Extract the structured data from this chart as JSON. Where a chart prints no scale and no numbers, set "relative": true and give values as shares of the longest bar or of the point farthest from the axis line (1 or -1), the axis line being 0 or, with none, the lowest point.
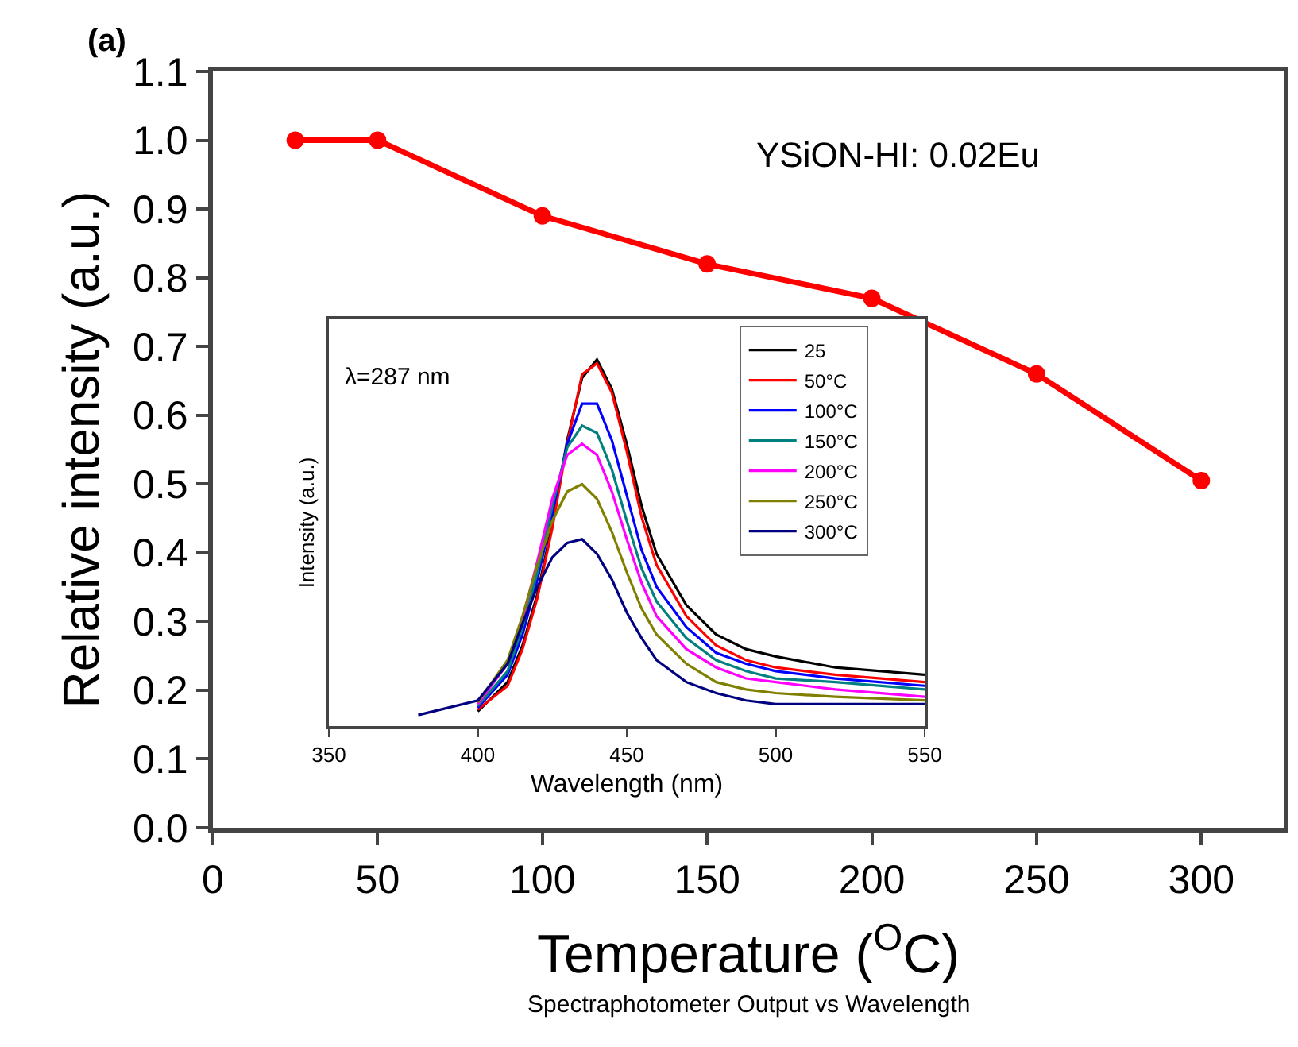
{
  "chart_data": [
    {
      "type": "line",
      "xlabel": "Temperature ($^{O}$C)",
      "ylabel": "Relative intensity (a.u.)",
      "x": [
        25,
        50,
        100,
        150,
        200,
        250,
        300
      ],
      "values": [
        1.0,
        1.0,
        0.89,
        0.82,
        0.77,
        0.66,
        0.505
      ],
      "color": "#ff0000",
      "marker": "circle",
      "xlim": [
        0,
        325
      ],
      "xticks": [
        0,
        50,
        100,
        150,
        200,
        250,
        300
      ],
      "ylim": [
        0,
        1.1
      ],
      "yticks": [
        {
          "value": 0,
          "label": "0.0"
        },
        0.1,
        0.2,
        0.3,
        0.4,
        0.5,
        0.6,
        0.7,
        0.8,
        0.9,
        {
          "value": 1,
          "label": "1.0"
        },
        1.1
      ],
      "grid": false,
      "legend": false,
      "annotations": [
        "(a)",
        "YSiON-HI: 0.02Eu",
        "Spectraphotometer Output vs Wavelength"
      ]
    },
    {
      "type": "line",
      "relative": true,
      "xlabel": "Wavelength (nm)",
      "ylabel": "Intensity (a.u.)",
      "xlim": [
        350,
        550
      ],
      "xticks": [
        350,
        400,
        450,
        500,
        550
      ],
      "x": [
        380,
        400,
        410,
        415,
        420,
        425,
        430,
        435,
        440,
        445,
        450,
        455,
        460,
        470,
        480,
        490,
        500,
        520,
        550
      ],
      "legend": "top right",
      "grid": false,
      "annotations": [
        "λ=287 nm"
      ],
      "series": [
        {
          "name": "25",
          "color": "#000000",
          "values": [
            null,
            0.04,
            0.12,
            0.22,
            0.36,
            0.55,
            0.78,
            0.95,
            1.0,
            0.92,
            0.77,
            0.6,
            0.47,
            0.33,
            0.25,
            0.21,
            0.19,
            0.16,
            0.14
          ]
        },
        {
          "name": "50°C",
          "color": "#ff0000",
          "values": [
            null,
            0.045,
            0.11,
            0.21,
            0.35,
            0.54,
            0.77,
            0.96,
            0.99,
            0.91,
            0.75,
            0.57,
            0.44,
            0.3,
            0.22,
            0.18,
            0.16,
            0.14,
            0.12
          ]
        },
        {
          "name": "100°C",
          "color": "#0000ff",
          "values": [
            null,
            0.05,
            0.14,
            0.25,
            0.4,
            0.58,
            0.77,
            0.88,
            0.88,
            0.78,
            0.63,
            0.48,
            0.38,
            0.27,
            0.2,
            0.17,
            0.15,
            0.13,
            0.11
          ]
        },
        {
          "name": "150°C",
          "color": "#008080",
          "values": [
            null,
            0.055,
            0.15,
            0.27,
            0.42,
            0.6,
            0.76,
            0.82,
            0.8,
            0.7,
            0.56,
            0.43,
            0.34,
            0.24,
            0.18,
            0.15,
            0.13,
            0.12,
            0.1
          ]
        },
        {
          "name": "200°C",
          "color": "#ff00ff",
          "values": [
            null,
            0.06,
            0.17,
            0.29,
            0.45,
            0.62,
            0.74,
            0.77,
            0.74,
            0.64,
            0.51,
            0.39,
            0.3,
            0.21,
            0.16,
            0.13,
            0.12,
            0.1,
            0.08
          ]
        },
        {
          "name": "250°C",
          "color": "#808000",
          "values": [
            null,
            0.065,
            0.18,
            0.3,
            0.44,
            0.56,
            0.64,
            0.66,
            0.62,
            0.53,
            0.42,
            0.32,
            0.25,
            0.17,
            0.12,
            0.1,
            0.09,
            0.08,
            0.07
          ]
        },
        {
          "name": "300°C",
          "color": "#000080",
          "values": [
            0.03,
            0.07,
            0.17,
            0.28,
            0.38,
            0.46,
            0.5,
            0.51,
            0.47,
            0.4,
            0.31,
            0.24,
            0.18,
            0.12,
            0.09,
            0.07,
            0.06,
            0.06,
            0.06
          ]
        }
      ]
    }
  ]
}
